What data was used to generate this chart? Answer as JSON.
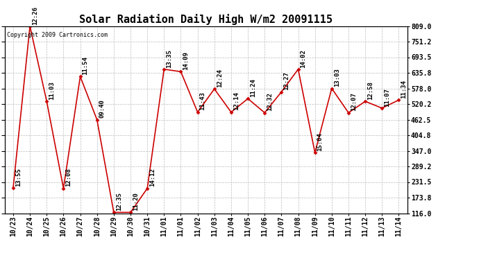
{
  "title": "Solar Radiation Daily High W/m2 20091115",
  "copyright": "Copyright 2009 Cartronics.com",
  "dates": [
    "10/23",
    "10/24",
    "10/25",
    "10/26",
    "10/27",
    "10/28",
    "10/29",
    "10/30",
    "10/31",
    "11/01",
    "11/01",
    "11/02",
    "11/03",
    "11/04",
    "11/05",
    "11/06",
    "11/07",
    "11/08",
    "11/09",
    "11/10",
    "11/11",
    "11/12",
    "11/13",
    "11/14"
  ],
  "values": [
    210,
    808,
    530,
    208,
    622,
    462,
    119,
    119,
    208,
    649,
    640,
    490,
    576,
    490,
    540,
    488,
    565,
    649,
    340,
    578,
    488,
    530,
    505,
    535
  ],
  "time_labels": [
    "13:55",
    "12:26",
    "11:03",
    "12:08",
    "11:54",
    "09:40",
    "12:35",
    "11:20",
    "14:12",
    "13:35",
    "14:09",
    "11:43",
    "12:24",
    "12:14",
    "11:24",
    "12:32",
    "12:27",
    "14:02",
    "15:04",
    "13:03",
    "12:07",
    "12:58",
    "11:07",
    "11:34"
  ],
  "ylim_min": 116.0,
  "ylim_max": 809.0,
  "yticks": [
    116.0,
    173.8,
    231.5,
    289.2,
    347.0,
    404.8,
    462.5,
    520.2,
    578.0,
    635.8,
    693.5,
    751.2,
    809.0
  ],
  "line_color": "#cc0000",
  "bg_color": "#ffffff",
  "grid_color": "#bbbbbb",
  "title_fontsize": 11,
  "label_fontsize": 6.5,
  "tick_fontsize": 7,
  "copyright_fontsize": 6
}
